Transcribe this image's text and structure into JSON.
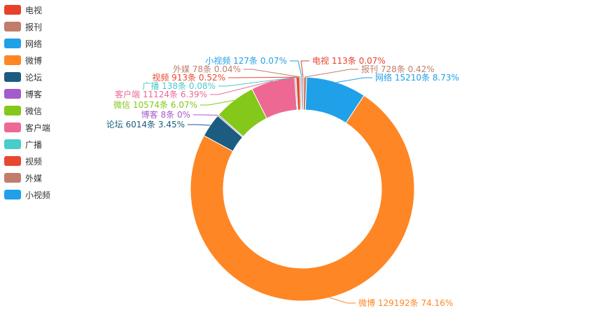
{
  "chart_data": {
    "type": "pie",
    "style": "donut",
    "title": "",
    "legend_position": "top-left",
    "unit": "条",
    "series": [
      {
        "name": "电视",
        "value": 113,
        "percent": "0.07%",
        "color": "#e8402a"
      },
      {
        "name": "报刊",
        "value": 728,
        "percent": "0.42%",
        "color": "#c07e6a"
      },
      {
        "name": "网络",
        "value": 15210,
        "percent": "8.73%",
        "color": "#20a0e8"
      },
      {
        "name": "微博",
        "value": 129192,
        "percent": "74.16%",
        "color": "#ff8624"
      },
      {
        "name": "论坛",
        "value": 6014,
        "percent": "3.45%",
        "color": "#1c5c80"
      },
      {
        "name": "博客",
        "value": 8,
        "percent": "0%",
        "color": "#a45ccc"
      },
      {
        "name": "微信",
        "value": 10574,
        "percent": "6.07%",
        "color": "#84c81a"
      },
      {
        "name": "客户端",
        "value": 11124,
        "percent": "6.39%",
        "color": "#ee6894"
      },
      {
        "name": "广播",
        "value": 138,
        "percent": "0.08%",
        "color": "#48cccc"
      },
      {
        "name": "视频",
        "value": 913,
        "percent": "0.52%",
        "color": "#e84830"
      },
      {
        "name": "外媒",
        "value": 78,
        "percent": "0.04%",
        "color": "#c07e6a"
      },
      {
        "name": "小视频",
        "value": 127,
        "percent": "0.07%",
        "color": "#20a0e8"
      }
    ]
  }
}
